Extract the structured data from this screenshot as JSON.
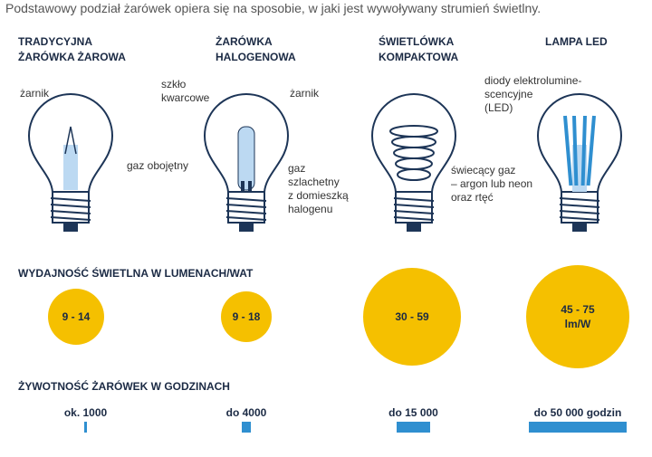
{
  "intro": "Podstawowy podział żarówek opiera się na sposobie, w jaki jest wywoływany strumień świetlny.",
  "columns": [
    {
      "title": [
        "TRADYCYJNA",
        "ŻARÓWKA ŻAROWA"
      ],
      "annotations": [
        [
          "żarnik"
        ],
        [
          "gaz obojętny"
        ]
      ],
      "efficiency": [
        "9 - 14"
      ],
      "lifetime": "ok. 1000"
    },
    {
      "title": [
        "ŻARÓWKA",
        "HALOGENOWA"
      ],
      "annotations": [
        [
          "szkło",
          "kwarcowe"
        ],
        [
          "żarnik"
        ],
        [
          "gaz",
          "szlachetny",
          "z domieszką",
          "halogenu"
        ]
      ],
      "efficiency": [
        "9 - 18"
      ],
      "lifetime": "do 4000"
    },
    {
      "title": [
        "ŚWIETLÓWKA",
        "KOMPAKTOWA"
      ],
      "annotations": [
        [
          "świecący gaz",
          "– argon lub neon",
          "oraz rtęć"
        ]
      ],
      "efficiency": [
        "30 - 59"
      ],
      "lifetime": "do 15 000"
    },
    {
      "title": [
        "LAMPA LED"
      ],
      "annotations": [
        [
          "diody elektrolumine-",
          "scencyjne",
          "(LED)"
        ]
      ],
      "efficiency": [
        "45 - 75",
        "lm/W"
      ],
      "lifetime": "do 50 000 godzin"
    }
  ],
  "efficiency_heading": "WYDAJNOŚĆ ŚWIETLNA W LUMENACH/WAT",
  "lifetime_heading": "ŻYWOTNOŚĆ ŻARÓWEK W GODZINACH"
}
